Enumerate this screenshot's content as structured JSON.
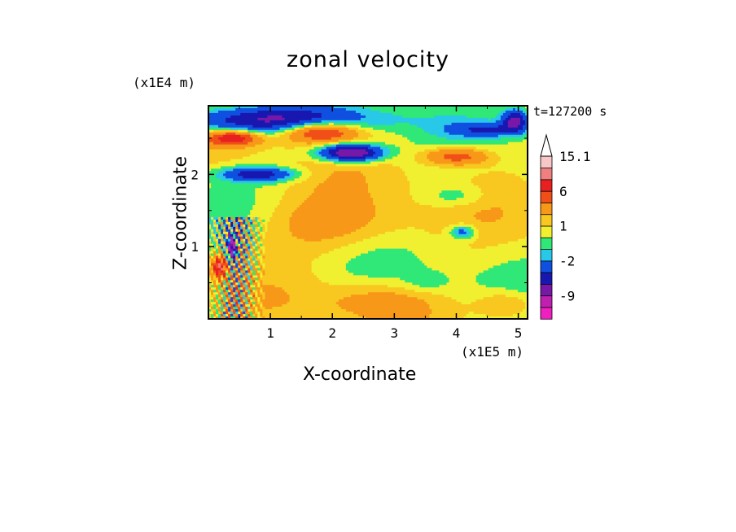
{
  "chart_data": {
    "type": "heatmap",
    "title": "zonal velocity",
    "xlabel": "X-coordinate",
    "ylabel": "Z-coordinate",
    "x_unit": "(x1E5 m)",
    "y_unit": "(x1E4 m)",
    "annotation": "t=127200 s",
    "xlim": [
      0,
      5.15
    ],
    "ylim": [
      0,
      2.95
    ],
    "x_ticks": [
      "1",
      "2",
      "3",
      "4",
      "5"
    ],
    "y_ticks": [
      "1",
      "2"
    ],
    "x_tick_values": [
      1,
      2,
      3,
      4,
      5
    ],
    "y_tick_values": [
      1,
      2
    ],
    "colorbar": {
      "labels": [
        "15.1",
        "6",
        "1",
        "-2",
        "-9"
      ],
      "label_values": [
        15.1,
        6,
        1,
        -2,
        -9
      ],
      "levels": [
        -13,
        -9,
        -6,
        -4,
        -2,
        -1,
        0,
        1,
        2,
        4,
        6,
        9,
        12,
        15.1
      ],
      "colors": [
        "#f020c0",
        "#c020b0",
        "#7818a8",
        "#1818b0",
        "#1050e0",
        "#28c8e8",
        "#30e878",
        "#f0f030",
        "#f8c820",
        "#f89818",
        "#f05018",
        "#e82020",
        "#f08080",
        "#f8c8c8"
      ]
    },
    "features": [
      {
        "x": 1.0,
        "z": 2.75,
        "sx": 1.6,
        "sz": 0.18,
        "u": -7
      },
      {
        "x": 2.3,
        "z": 2.3,
        "sx": 0.5,
        "sz": 0.12,
        "u": -10
      },
      {
        "x": 4.5,
        "z": 2.62,
        "sx": 0.6,
        "sz": 0.1,
        "u": -4
      },
      {
        "x": 4.95,
        "z": 2.75,
        "sx": 0.2,
        "sz": 0.15,
        "u": -7
      },
      {
        "x": 0.8,
        "z": 2.0,
        "sx": 0.6,
        "sz": 0.1,
        "u": -6
      },
      {
        "x": 1.8,
        "z": 2.6,
        "sx": 0.6,
        "sz": 0.15,
        "u": 7
      },
      {
        "x": 0.4,
        "z": 2.5,
        "sx": 0.4,
        "sz": 0.1,
        "u": 7
      },
      {
        "x": 4.0,
        "z": 2.25,
        "sx": 0.5,
        "sz": 0.12,
        "u": 5
      },
      {
        "x": 2.0,
        "z": 1.3,
        "sx": 1.3,
        "sz": 0.4,
        "u": 2.5
      },
      {
        "x": 2.7,
        "z": 0.25,
        "sx": 0.9,
        "sz": 0.25,
        "u": 2
      },
      {
        "x": 4.1,
        "z": 1.2,
        "sx": 0.2,
        "sz": 0.1,
        "u": -4
      },
      {
        "x": 4.0,
        "z": 1.7,
        "sx": 0.5,
        "sz": 0.15,
        "u": -1.8
      },
      {
        "x": 3.5,
        "z": 0.5,
        "sx": 0.4,
        "sz": 0.15,
        "u": -1.2
      },
      {
        "x": 0.38,
        "z": 1.0,
        "sx": 0.07,
        "sz": 0.2,
        "u": -10
      },
      {
        "x": 0.18,
        "z": 0.72,
        "sx": 0.12,
        "sz": 0.15,
        "u": 7
      },
      {
        "x": 4.8,
        "z": 0.2,
        "sx": 0.5,
        "sz": 0.2,
        "u": 2.5
      }
    ]
  }
}
